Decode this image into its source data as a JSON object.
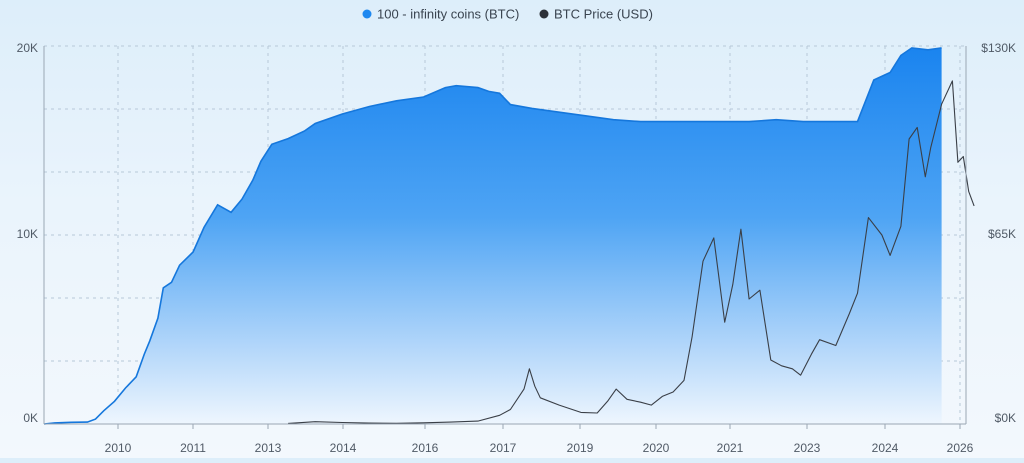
{
  "chart_data": {
    "type": "area",
    "x_ticks": [
      "2010",
      "2011",
      "2013",
      "2014",
      "2016",
      "2017",
      "2019",
      "2020",
      "2021",
      "2023",
      "2024",
      "2026"
    ],
    "y_left_ticks": [
      "0K",
      "10K",
      "20K"
    ],
    "y_left_range": [
      0,
      20000
    ],
    "y_right_ticks": [
      "$0K",
      "$65K",
      "$130K"
    ],
    "y_right_range": [
      0,
      130000
    ],
    "grid": true,
    "legend_position": "top-center",
    "colors": {
      "area": "#1e88f0",
      "area_light": "#eaf4fd",
      "line": "#3a3f47",
      "grid": "#b7c8d8"
    },
    "series": [
      {
        "name": "100 - infinity coins (BTC)",
        "axis": "left",
        "style": "area",
        "points": [
          [
            "2009.0",
            0
          ],
          [
            "2009.2",
            60
          ],
          [
            "2009.5",
            90
          ],
          [
            "2009.8",
            100
          ],
          [
            "2009.95",
            260
          ],
          [
            "2010.1",
            700
          ],
          [
            "2010.3",
            1200
          ],
          [
            "2010.5",
            1900
          ],
          [
            "2010.7",
            2500
          ],
          [
            "2010.85",
            3700
          ],
          [
            "2010.95",
            4400
          ],
          [
            "2011.1",
            5600
          ],
          [
            "2011.2",
            7200
          ],
          [
            "2011.35",
            7500
          ],
          [
            "2011.5",
            8400
          ],
          [
            "2011.75",
            9100
          ],
          [
            "2011.95",
            10400
          ],
          [
            "2012.2",
            11600
          ],
          [
            "2012.45",
            11200
          ],
          [
            "2012.65",
            11900
          ],
          [
            "2012.85",
            12900
          ],
          [
            "2013.0",
            13900
          ],
          [
            "2013.2",
            14800
          ],
          [
            "2013.5",
            15100
          ],
          [
            "2013.8",
            15500
          ],
          [
            "2014.0",
            15900
          ],
          [
            "2014.5",
            16400
          ],
          [
            "2015.0",
            16800
          ],
          [
            "2015.5",
            17100
          ],
          [
            "2016.0",
            17300
          ],
          [
            "2016.4",
            17800
          ],
          [
            "2016.6",
            17900
          ],
          [
            "2017.0",
            17800
          ],
          [
            "2017.2",
            17600
          ],
          [
            "2017.4",
            17500
          ],
          [
            "2017.6",
            16900
          ],
          [
            "2018.0",
            16700
          ],
          [
            "2018.5",
            16500
          ],
          [
            "2019.0",
            16300
          ],
          [
            "2019.5",
            16100
          ],
          [
            "2020.0",
            16000
          ],
          [
            "2020.5",
            16000
          ],
          [
            "2021.0",
            16000
          ],
          [
            "2021.5",
            16000
          ],
          [
            "2022.0",
            16000
          ],
          [
            "2022.5",
            16100
          ],
          [
            "2023.0",
            16000
          ],
          [
            "2023.5",
            16000
          ],
          [
            "2024.0",
            16000
          ],
          [
            "2024.3",
            18200
          ],
          [
            "2024.6",
            18600
          ],
          [
            "2024.8",
            19500
          ],
          [
            "2025.0",
            19900
          ],
          [
            "2025.3",
            19800
          ],
          [
            "2025.55",
            19900
          ]
        ]
      },
      {
        "name": "BTC Price (USD)",
        "axis": "right",
        "style": "line",
        "points": [
          [
            "2013.5",
            200
          ],
          [
            "2014.0",
            800
          ],
          [
            "2014.5",
            500
          ],
          [
            "2015.0",
            300
          ],
          [
            "2015.5",
            250
          ],
          [
            "2016.0",
            400
          ],
          [
            "2016.5",
            650
          ],
          [
            "2017.0",
            1000
          ],
          [
            "2017.4",
            3000
          ],
          [
            "2017.6",
            5000
          ],
          [
            "2017.85",
            12000
          ],
          [
            "2017.95",
            19000
          ],
          [
            "2018.05",
            13000
          ],
          [
            "2018.15",
            9000
          ],
          [
            "2018.5",
            6500
          ],
          [
            "2018.9",
            4000
          ],
          [
            "2019.2",
            3800
          ],
          [
            "2019.4",
            8000
          ],
          [
            "2019.55",
            12000
          ],
          [
            "2019.75",
            8500
          ],
          [
            "2020.0",
            7500
          ],
          [
            "2020.2",
            6500
          ],
          [
            "2020.4",
            9500
          ],
          [
            "2020.6",
            11000
          ],
          [
            "2020.8",
            15000
          ],
          [
            "2020.95",
            30000
          ],
          [
            "2021.15",
            56000
          ],
          [
            "2021.35",
            64000
          ],
          [
            "2021.55",
            35000
          ],
          [
            "2021.7",
            48000
          ],
          [
            "2021.85",
            67000
          ],
          [
            "2022.0",
            43000
          ],
          [
            "2022.2",
            46000
          ],
          [
            "2022.4",
            22000
          ],
          [
            "2022.6",
            20000
          ],
          [
            "2022.8",
            19000
          ],
          [
            "2022.95",
            16800
          ],
          [
            "2023.15",
            24000
          ],
          [
            "2023.3",
            29000
          ],
          [
            "2023.6",
            27000
          ],
          [
            "2023.85",
            38000
          ],
          [
            "2024.0",
            45000
          ],
          [
            "2024.2",
            71000
          ],
          [
            "2024.45",
            65000
          ],
          [
            "2024.6",
            58000
          ],
          [
            "2024.8",
            68000
          ],
          [
            "2024.95",
            98000
          ],
          [
            "2025.1",
            102000
          ],
          [
            "2025.25",
            85000
          ],
          [
            "2025.35",
            95000
          ],
          [
            "2025.55",
            110000
          ],
          [
            "2025.75",
            118000
          ],
          [
            "2025.85",
            90000
          ],
          [
            "2025.95",
            92000
          ],
          [
            "2026.05",
            80000
          ],
          [
            "2026.15",
            75000
          ]
        ]
      }
    ]
  }
}
